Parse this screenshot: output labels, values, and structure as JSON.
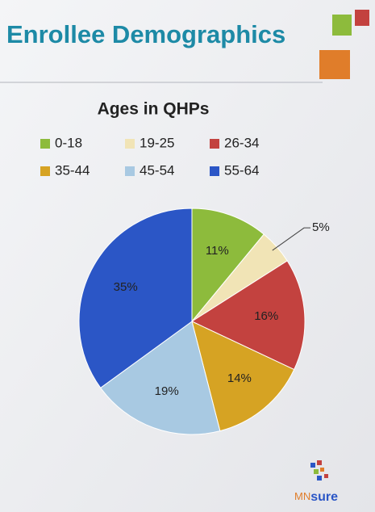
{
  "header": {
    "title": "Enrollee Demographics"
  },
  "chart_data": {
    "type": "pie",
    "title": "Ages in QHPs",
    "categories": [
      "0-18",
      "19-25",
      "26-34",
      "35-44",
      "45-54",
      "55-64"
    ],
    "values": [
      11,
      5,
      16,
      14,
      19,
      35
    ],
    "value_labels": [
      "11%",
      "5%",
      "16%",
      "14%",
      "19%",
      "35%"
    ],
    "colors": [
      "#8dbb3c",
      "#f1e4b6",
      "#c3423f",
      "#d6a323",
      "#a8c9e2",
      "#2b56c6"
    ]
  },
  "logo": [
    "MN",
    "sure"
  ]
}
